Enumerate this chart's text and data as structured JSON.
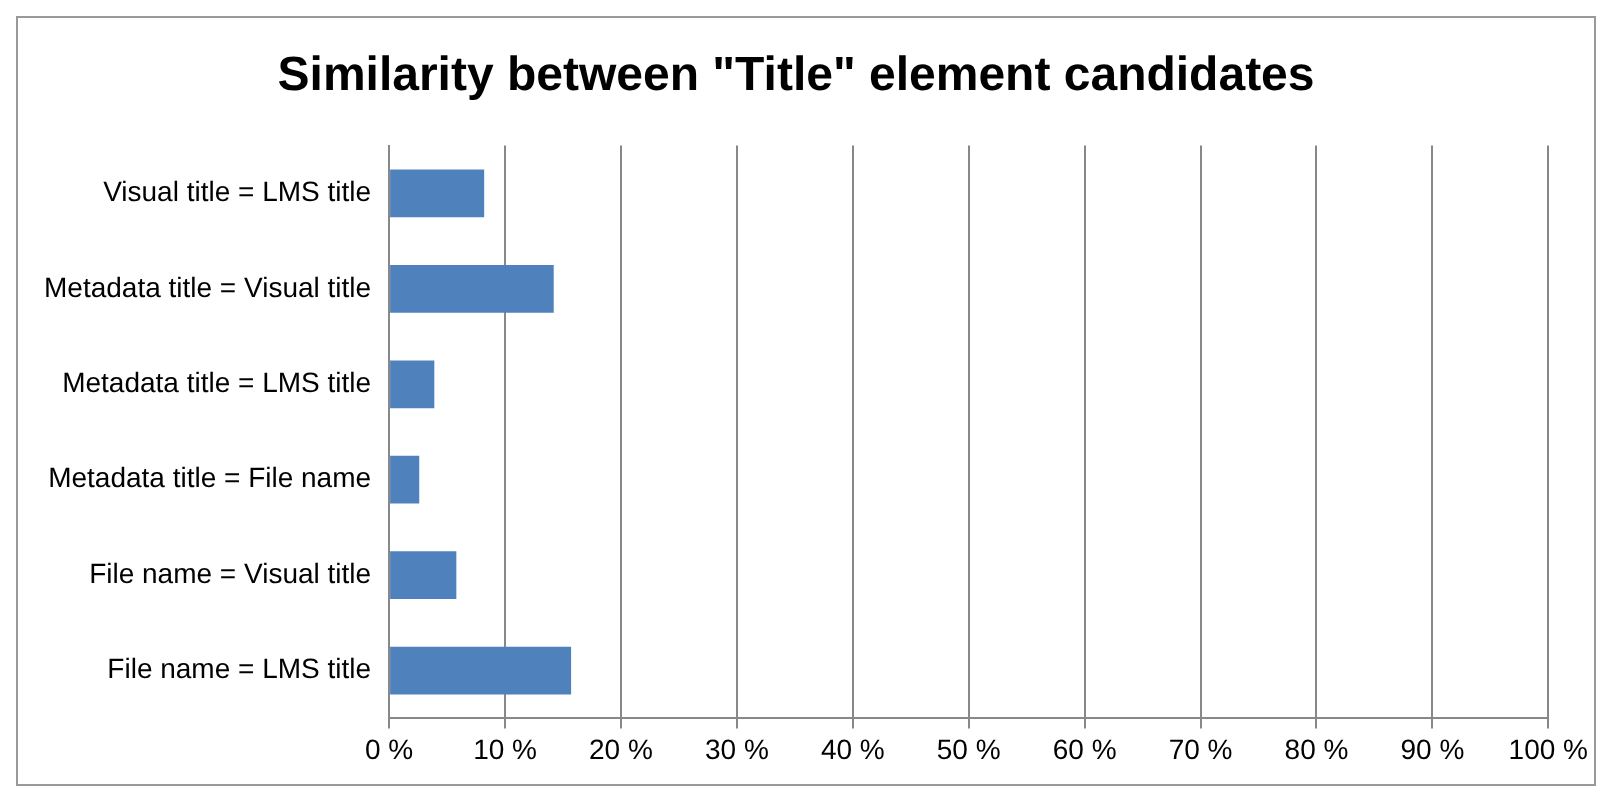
{
  "chart_data": {
    "type": "bar",
    "orientation": "horizontal",
    "title": "Similarity between \"Title\" element candidates",
    "categories": [
      "Visual title = LMS title",
      "Metadata title = Visual title",
      "Metadata title = LMS title",
      "Metadata title = File name",
      "File name = Visual title",
      "File name = LMS title"
    ],
    "values": [
      8.2,
      14.2,
      3.9,
      2.6,
      5.8,
      15.7
    ],
    "color": "#4f81bd",
    "xlim": [
      0,
      100
    ],
    "xticks": [
      {
        "value": 0,
        "label": "0 %"
      },
      {
        "value": 10,
        "label": "10 %"
      },
      {
        "value": 20,
        "label": "20 %"
      },
      {
        "value": 30,
        "label": "30 %"
      },
      {
        "value": 40,
        "label": "40 %"
      },
      {
        "value": 50,
        "label": "50 %"
      },
      {
        "value": 60,
        "label": "60 %"
      },
      {
        "value": 70,
        "label": "70 %"
      },
      {
        "value": 80,
        "label": "80 %"
      },
      {
        "value": 90,
        "label": "90 %"
      },
      {
        "value": 100,
        "label": "100 %"
      }
    ],
    "grid": "x",
    "legend": false
  }
}
